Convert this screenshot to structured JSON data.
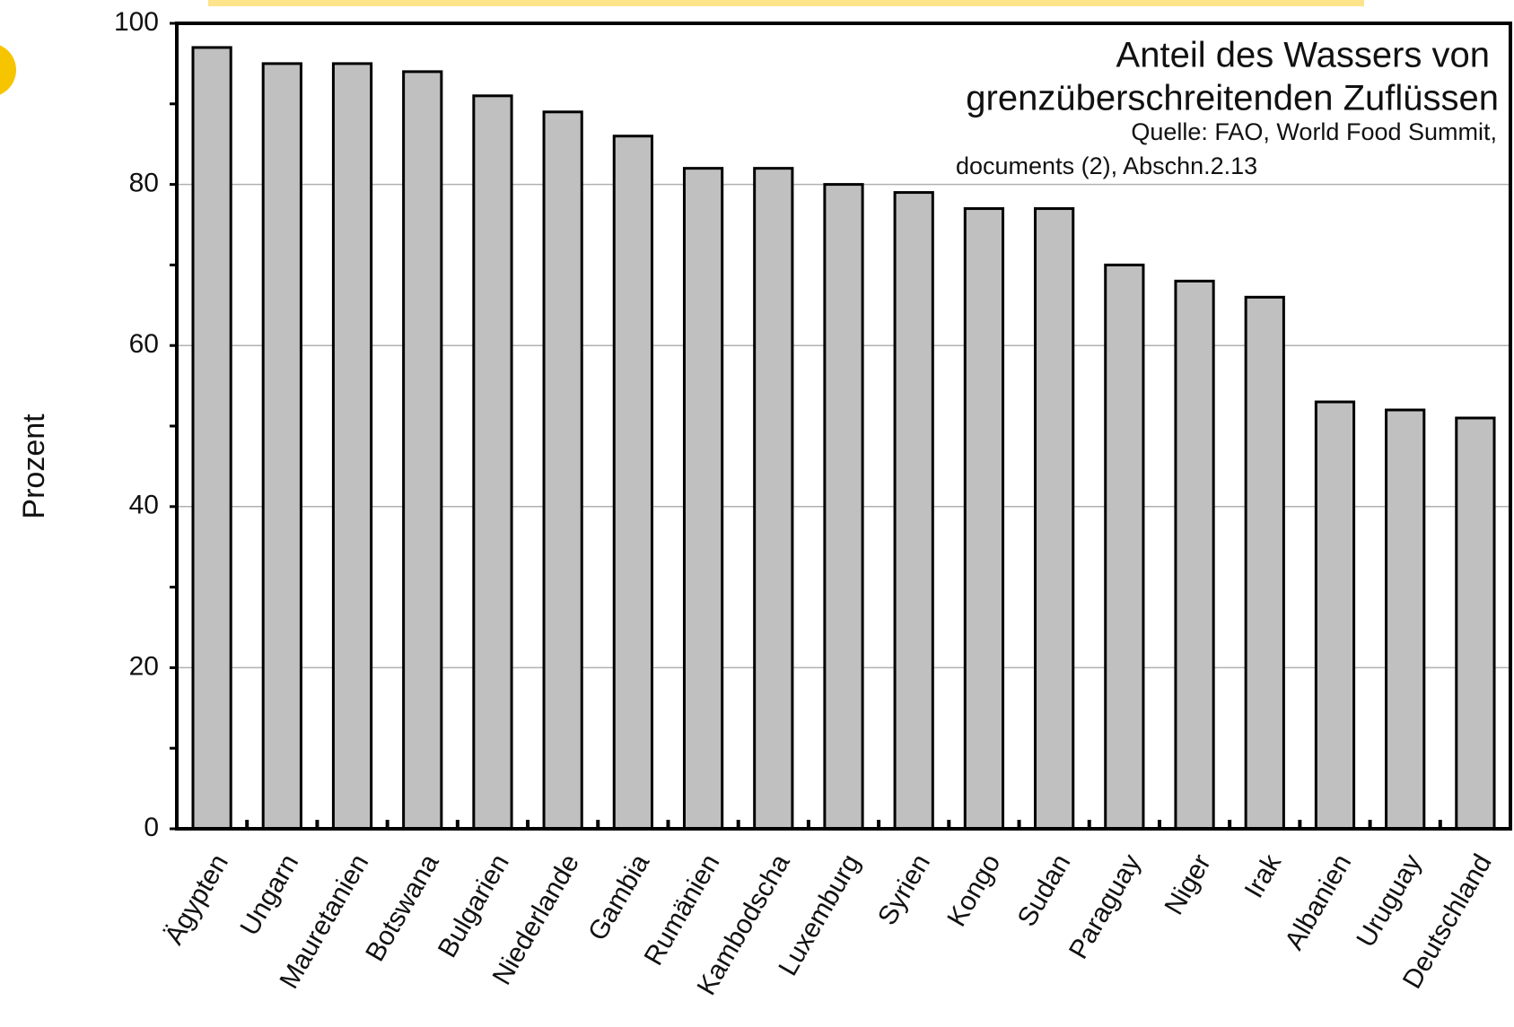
{
  "chart_data": {
    "type": "bar",
    "title": "Anteil des Wassers von",
    "title_line2": "grenzüberschreitenden Zuflüssen",
    "source": "Quelle: FAO, World Food Summit,",
    "source_line2": "documents (2), Abschn.2.13",
    "ylabel": "Prozent",
    "categories": [
      "Ägypten",
      "Ungarn",
      "Mauretanien",
      "Botswana",
      "Bulgarien",
      "Niederlande",
      "Gambia",
      "Rumänien",
      "Kambodscha",
      "Luxemburg",
      "Syrien",
      "Kongo",
      "Sudan",
      "Paraguay",
      "Niger",
      "Irak",
      "Albanien",
      "Uruguay",
      "Deutschland"
    ],
    "values": [
      97,
      95,
      95,
      94,
      91,
      89,
      86,
      82,
      82,
      80,
      79,
      77,
      77,
      70,
      68,
      66,
      53,
      52,
      51
    ],
    "color": "#c0c0c0",
    "ylim": [
      0,
      100
    ],
    "yticks": [
      0,
      20,
      40,
      60,
      80,
      100
    ],
    "grid": true
  }
}
